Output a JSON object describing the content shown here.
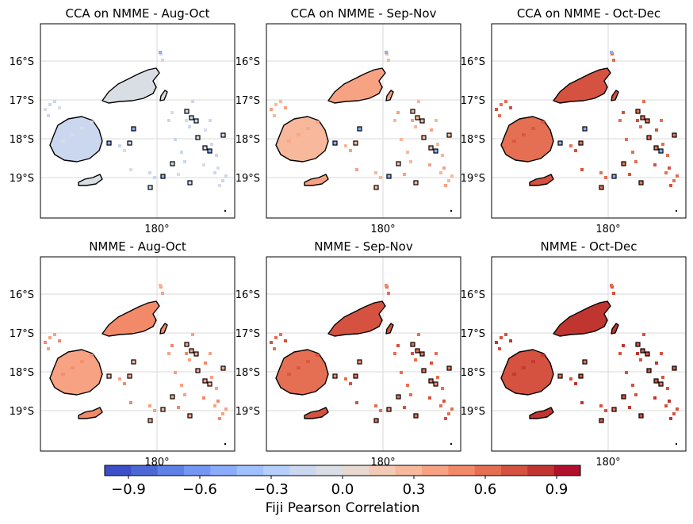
{
  "chart_data": {
    "type": "heatmap",
    "colorbar": {
      "label": "Fiji Pearson Correlation",
      "vmin": -1.0,
      "vmax": 1.0,
      "step": 0.1,
      "ticks": [
        -0.9,
        -0.6,
        -0.3,
        0.0,
        0.3,
        0.6,
        0.9
      ],
      "tick_labels": [
        "−0.9",
        "−0.6",
        "−0.3",
        "0.0",
        "0.3",
        "0.6",
        "0.9"
      ],
      "colormap": "coolwarm",
      "colors": [
        "#3d4fc7",
        "#4d68d6",
        "#5f81e6",
        "#7497f3",
        "#89acfb",
        "#a0c0fe",
        "#b6cffa",
        "#cad7ef",
        "#d9dde4",
        "#e7d9cf",
        "#f2cab6",
        "#f7b89c",
        "#f7a283",
        "#f28a6a",
        "#e56f53",
        "#d4523f",
        "#c13530",
        "#b0102b"
      ],
      "under_color": "#3b4cc0",
      "over_color": "#b40426"
    },
    "panels": [
      {
        "title": "CCA on NMME - Aug-Oct",
        "island_value": -0.2,
        "outlier_value": -0.5
      },
      {
        "title": "CCA on NMME - Sep-Nov",
        "island_value": 0.3,
        "outlier_value": -0.5
      },
      {
        "title": "CCA on NMME - Oct-Dec",
        "island_value": 0.6,
        "outlier_value": -0.5
      },
      {
        "title": "NMME - Aug-Oct",
        "island_value": 0.35,
        "outlier_value": 0.3
      },
      {
        "title": "NMME - Sep-Nov",
        "island_value": 0.6,
        "outlier_value": 0.5
      },
      {
        "title": "NMME - Oct-Dec",
        "island_value": 0.75,
        "outlier_value": 0.6
      }
    ],
    "y_ticks": [
      "16°S",
      "17°S",
      "18°S",
      "19°S"
    ],
    "x_ticks": [
      "180°"
    ],
    "grid": true
  }
}
